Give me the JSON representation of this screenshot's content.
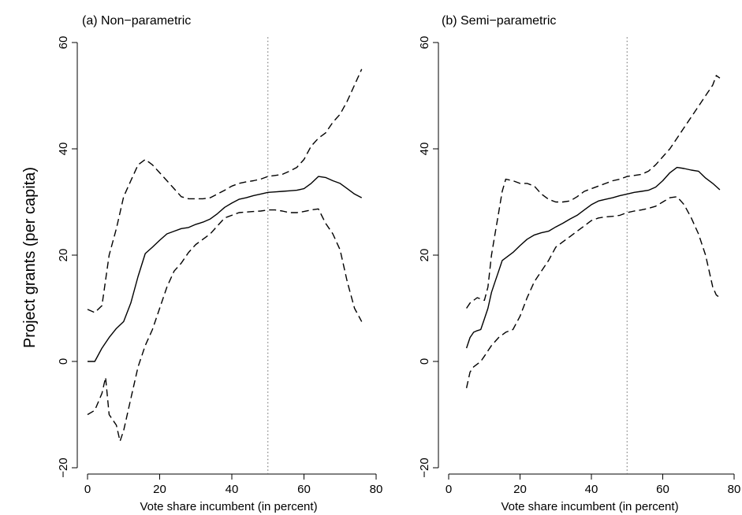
{
  "figure": {
    "ylabel": "Project grants (per capita)"
  },
  "chart_data": [
    {
      "type": "line",
      "title": "(a) Non−parametric",
      "xlabel": "Vote share incumbent (in percent)",
      "ylabel": "Project grants (per capita)",
      "xlim": [
        -2,
        80
      ],
      "ylim": [
        -21,
        61
      ],
      "xticks": [
        0,
        20,
        40,
        60,
        80
      ],
      "xtick_labels": [
        "0",
        "20",
        "40",
        "60",
        "80"
      ],
      "yticks": [
        -20,
        0,
        20,
        40,
        60
      ],
      "ytick_labels": [
        "−20",
        "0",
        "20",
        "40",
        "60"
      ],
      "vline": 50,
      "grid": false,
      "series": [
        {
          "role": "estimate",
          "style": "solid",
          "x": [
            0,
            2,
            4,
            6,
            8,
            10,
            12,
            14,
            16,
            18,
            20,
            22,
            24,
            26,
            28,
            30,
            32,
            34,
            36,
            38,
            40,
            42,
            44,
            46,
            48,
            50,
            52,
            54,
            56,
            58,
            60,
            62,
            64,
            66,
            68,
            70,
            72,
            74,
            76
          ],
          "y": [
            0,
            0,
            2.5,
            4.5,
            6.2,
            7.5,
            11,
            16,
            20.3,
            21.5,
            22.8,
            24,
            24.5,
            25,
            25.2,
            25.8,
            26.2,
            26.8,
            27.8,
            29,
            29.8,
            30.5,
            30.8,
            31.2,
            31.5,
            31.8,
            31.9,
            32,
            32.1,
            32.2,
            32.5,
            33.5,
            34.8,
            34.6,
            34,
            33.5,
            32.5,
            31.5,
            30.8
          ]
        },
        {
          "role": "upper_ci",
          "style": "dashed",
          "x": [
            0,
            2,
            4,
            6,
            8,
            10,
            12,
            14,
            16,
            18,
            20,
            22,
            24,
            26,
            28,
            30,
            32,
            34,
            36,
            38,
            40,
            42,
            44,
            46,
            48,
            50,
            52,
            54,
            56,
            58,
            60,
            62,
            64,
            66,
            68,
            70,
            72,
            74,
            76
          ],
          "y": [
            9.8,
            9.2,
            10.5,
            20,
            25,
            31,
            34,
            37,
            38,
            37,
            35.5,
            34,
            32.5,
            31,
            30.6,
            30.6,
            30.6,
            30.8,
            31.5,
            32.2,
            33,
            33.5,
            33.8,
            34,
            34.3,
            34.8,
            35,
            35.2,
            35.8,
            36.5,
            38,
            40.5,
            42,
            43,
            45,
            46.5,
            49,
            52,
            55
          ]
        },
        {
          "role": "lower_ci",
          "style": "dashed",
          "x": [
            0,
            2,
            4,
            5,
            6,
            8,
            9,
            10,
            12,
            14,
            16,
            18,
            20,
            22,
            24,
            26,
            28,
            30,
            32,
            34,
            36,
            38,
            40,
            42,
            44,
            46,
            48,
            50,
            52,
            54,
            56,
            58,
            60,
            62,
            64,
            66,
            68,
            70,
            72,
            74,
            76
          ],
          "y": [
            -10,
            -9.2,
            -6,
            -3,
            -10,
            -12,
            -15,
            -13,
            -7,
            -1,
            3,
            6,
            10,
            14,
            17,
            18.5,
            20.5,
            22,
            23,
            24,
            25.5,
            27,
            27.5,
            28,
            28.1,
            28.2,
            28.3,
            28.5,
            28.5,
            28.3,
            28,
            28,
            28.2,
            28.5,
            28.7,
            26,
            24,
            21,
            15,
            10,
            7.5
          ]
        }
      ]
    },
    {
      "type": "line",
      "title": "(b) Semi−parametric",
      "xlabel": "Vote share incumbent (in percent)",
      "ylabel": "Project grants (per capita)",
      "xlim": [
        -2,
        80
      ],
      "ylim": [
        -21,
        61
      ],
      "xticks": [
        0,
        20,
        40,
        60,
        80
      ],
      "xtick_labels": [
        "0",
        "20",
        "40",
        "60",
        "80"
      ],
      "yticks": [
        -20,
        0,
        20,
        40,
        60
      ],
      "ytick_labels": [
        "−20",
        "0",
        "20",
        "40",
        "60"
      ],
      "vline": 50,
      "grid": false,
      "series": [
        {
          "role": "estimate",
          "style": "solid",
          "x": [
            5,
            6,
            7,
            8,
            9,
            10,
            11,
            12,
            13,
            14,
            15,
            16,
            18,
            20,
            22,
            24,
            26,
            28,
            30,
            32,
            34,
            36,
            38,
            40,
            42,
            44,
            46,
            48,
            50,
            52,
            54,
            56,
            58,
            60,
            62,
            64,
            66,
            68,
            70,
            72,
            74,
            76
          ],
          "y": [
            2.5,
            4.5,
            5.5,
            5.8,
            6,
            8,
            10,
            13,
            15,
            17,
            19,
            19.5,
            20.5,
            21.8,
            23,
            23.8,
            24.2,
            24.5,
            25.3,
            26,
            26.8,
            27.5,
            28.5,
            29.5,
            30.2,
            30.5,
            30.8,
            31.2,
            31.5,
            31.8,
            32,
            32.2,
            32.8,
            34,
            35.5,
            36.5,
            36.3,
            36,
            35.8,
            34.5,
            33.5,
            32.3
          ]
        },
        {
          "role": "upper_ci",
          "style": "dashed",
          "x": [
            5,
            6,
            8,
            10,
            11,
            12,
            13,
            14,
            15,
            16,
            18,
            20,
            22,
            24,
            26,
            28,
            30,
            32,
            34,
            36,
            38,
            40,
            42,
            44,
            46,
            48,
            50,
            52,
            54,
            56,
            58,
            60,
            62,
            64,
            66,
            68,
            70,
            72,
            74,
            75,
            76
          ],
          "y": [
            10,
            11,
            12,
            11.5,
            14,
            20,
            24,
            28,
            32,
            34.3,
            34,
            33.5,
            33.5,
            33,
            31.5,
            30.5,
            30,
            30,
            30.2,
            31,
            32,
            32.5,
            33,
            33.5,
            34,
            34.3,
            34.8,
            35,
            35.2,
            35.8,
            37,
            38.5,
            40,
            42,
            44,
            46,
            48,
            50,
            52,
            53.8,
            53.3
          ]
        },
        {
          "role": "lower_ci",
          "style": "dashed",
          "x": [
            5,
            6,
            7,
            8,
            9,
            10,
            12,
            14,
            16,
            18,
            20,
            22,
            24,
            26,
            28,
            30,
            32,
            34,
            36,
            38,
            40,
            42,
            44,
            46,
            48,
            50,
            52,
            54,
            56,
            58,
            60,
            62,
            64,
            66,
            68,
            70,
            72,
            74,
            75,
            76
          ],
          "y": [
            -5,
            -2,
            -1,
            -0.5,
            0,
            1,
            3,
            4.5,
            5.5,
            6,
            8.5,
            12,
            15,
            17,
            19,
            21.5,
            22.5,
            23.5,
            24.5,
            25.5,
            26.5,
            27,
            27.2,
            27.3,
            27.5,
            28,
            28.3,
            28.5,
            28.8,
            29.2,
            30,
            30.8,
            31,
            29.5,
            27,
            24,
            20,
            14,
            12.5,
            12
          ]
        }
      ]
    }
  ]
}
